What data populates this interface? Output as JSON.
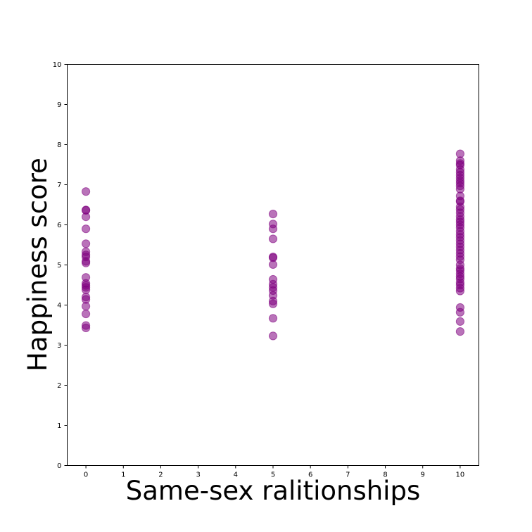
{
  "chart_data": {
    "type": "scatter",
    "title": "",
    "xlabel": "Same-sex ralitionships",
    "ylabel": "Happiness score",
    "xlim": [
      -0.5,
      10.5
    ],
    "ylim": [
      0,
      10
    ],
    "xticks": [
      0,
      1,
      2,
      3,
      4,
      5,
      6,
      7,
      8,
      9,
      10
    ],
    "yticks": [
      0,
      1,
      2,
      3,
      4,
      5,
      6,
      7,
      8,
      9,
      10
    ],
    "grid": false,
    "marker_color": "#800080",
    "marker_alpha": 0.55,
    "series": [
      {
        "points": [
          [
            0,
            6.83
          ],
          [
            0,
            6.37
          ],
          [
            0,
            6.36
          ],
          [
            0,
            6.2
          ],
          [
            0,
            5.9
          ],
          [
            0,
            5.53
          ],
          [
            0,
            5.33
          ],
          [
            0,
            5.25
          ],
          [
            0,
            5.2
          ],
          [
            0,
            5.09
          ],
          [
            0,
            5.05
          ],
          [
            0,
            4.69
          ],
          [
            0,
            4.54
          ],
          [
            0,
            4.49
          ],
          [
            0,
            4.44
          ],
          [
            0,
            4.38
          ],
          [
            0,
            4.2
          ],
          [
            0,
            4.14
          ],
          [
            0,
            3.97
          ],
          [
            0,
            3.78
          ],
          [
            0,
            3.49
          ],
          [
            0,
            3.43
          ],
          [
            5,
            6.27
          ],
          [
            5,
            6.02
          ],
          [
            5,
            5.9
          ],
          [
            5,
            5.65
          ],
          [
            5,
            5.2
          ],
          [
            5,
            5.18
          ],
          [
            5,
            5.01
          ],
          [
            5,
            4.64
          ],
          [
            5,
            4.52
          ],
          [
            5,
            4.44
          ],
          [
            5,
            4.36
          ],
          [
            5,
            4.24
          ],
          [
            5,
            4.1
          ],
          [
            5,
            4.03
          ],
          [
            5,
            3.67
          ],
          [
            5,
            3.23
          ],
          [
            10,
            7.77
          ],
          [
            10,
            7.6
          ],
          [
            10,
            7.53
          ],
          [
            10,
            7.49
          ],
          [
            10,
            7.38
          ],
          [
            10,
            7.31
          ],
          [
            10,
            7.24
          ],
          [
            10,
            7.17
          ],
          [
            10,
            7.1
          ],
          [
            10,
            7.04
          ],
          [
            10,
            6.97
          ],
          [
            10,
            6.89
          ],
          [
            10,
            6.72
          ],
          [
            10,
            6.6
          ],
          [
            10,
            6.58
          ],
          [
            10,
            6.45
          ],
          [
            10,
            6.38
          ],
          [
            10,
            6.3
          ],
          [
            10,
            6.21
          ],
          [
            10,
            6.13
          ],
          [
            10,
            6.07
          ],
          [
            10,
            6.0
          ],
          [
            10,
            5.93
          ],
          [
            10,
            5.84
          ],
          [
            10,
            5.76
          ],
          [
            10,
            5.69
          ],
          [
            10,
            5.61
          ],
          [
            10,
            5.53
          ],
          [
            10,
            5.45
          ],
          [
            10,
            5.37
          ],
          [
            10,
            5.29
          ],
          [
            10,
            5.21
          ],
          [
            10,
            5.13
          ],
          [
            10,
            5.0
          ],
          [
            10,
            4.91
          ],
          [
            10,
            4.86
          ],
          [
            10,
            4.78
          ],
          [
            10,
            4.71
          ],
          [
            10,
            4.65
          ],
          [
            10,
            4.56
          ],
          [
            10,
            4.5
          ],
          [
            10,
            4.42
          ],
          [
            10,
            4.35
          ],
          [
            10,
            3.94
          ],
          [
            10,
            3.82
          ],
          [
            10,
            3.59
          ],
          [
            10,
            3.34
          ]
        ]
      }
    ]
  }
}
